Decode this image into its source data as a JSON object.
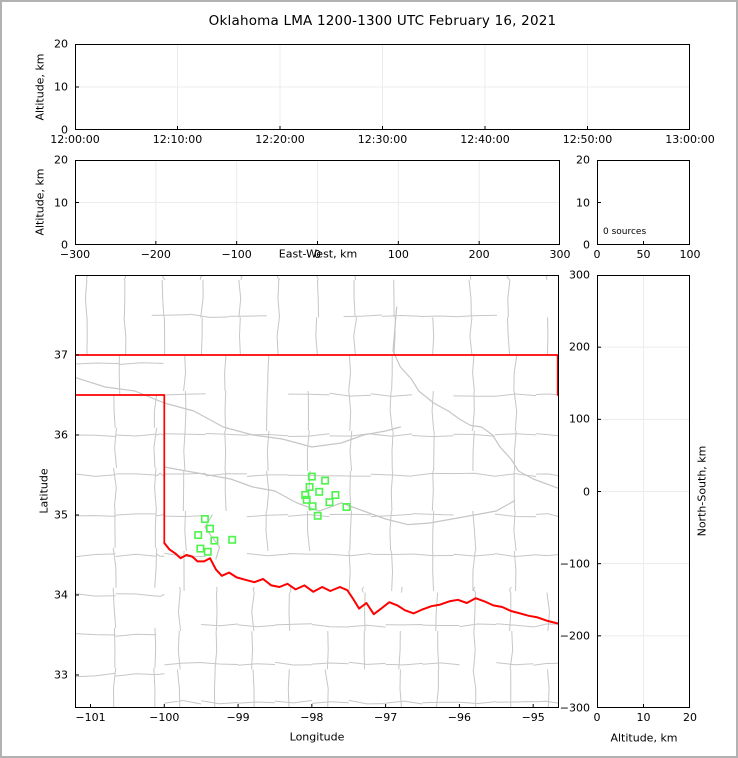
{
  "figure": {
    "title": "Oklahoma LMA 1200-1300 UTC February 16, 2021",
    "background": "#ffffff",
    "frame_color": "#b2b2b2"
  },
  "colors": {
    "axis": "#000000",
    "grid": "#ececec",
    "county": "#c6c6c6",
    "state_border": "#ff0000",
    "red_river": "#ff0000",
    "gray_river": "#c6c6c6",
    "station": "#4cf44c"
  },
  "chart_data": [
    {
      "id": "time_height",
      "type": "scatter",
      "xlabel": "",
      "ylabel": "Altitude, km",
      "xlim": [
        0,
        6
      ],
      "ylim": [
        0,
        20
      ],
      "xtick_vals": [
        0,
        1,
        2,
        3,
        4,
        5,
        6
      ],
      "xtick_labels": [
        "12:00:00",
        "12:10:00",
        "12:20:00",
        "12:30:00",
        "12:40:00",
        "12:50:00",
        "13:00:00"
      ],
      "ytick_vals": [
        0,
        10,
        20
      ],
      "ytick_labels": [
        "0",
        "10",
        "20"
      ],
      "grid": true,
      "points": []
    },
    {
      "id": "ew_height",
      "type": "scatter",
      "xlabel": "East-West, km",
      "ylabel": "Altitude, km",
      "xlim": [
        -300,
        300
      ],
      "ylim": [
        0,
        20
      ],
      "xtick_vals": [
        -300,
        -200,
        -100,
        0,
        100,
        200,
        300
      ],
      "xtick_labels": [
        "−300",
        "−200",
        "−100",
        "0",
        "100",
        "200",
        "300"
      ],
      "ytick_vals": [
        0,
        10,
        20
      ],
      "ytick_labels": [
        "0",
        "10",
        "20"
      ],
      "grid": true,
      "points": []
    },
    {
      "id": "altitude_histogram",
      "type": "line",
      "xlabel": "",
      "ylabel": "",
      "xlim": [
        0,
        100
      ],
      "ylim": [
        0,
        20
      ],
      "xtick_vals": [
        0,
        50,
        100
      ],
      "xtick_labels": [
        "0",
        "50",
        "100"
      ],
      "ytick_vals": [
        0,
        10,
        20
      ],
      "ytick_labels": [
        "0",
        "10",
        "20"
      ],
      "grid": false,
      "annotation": "0 sources",
      "points": []
    },
    {
      "id": "map",
      "type": "scatter",
      "xlabel": "Longitude",
      "ylabel": "Latitude",
      "xlim": [
        -101.21,
        -94.65
      ],
      "ylim": [
        32.5875,
        38.0
      ],
      "xtick_vals": [
        -101,
        -100,
        -99,
        -98,
        -97,
        -96,
        -95
      ],
      "xtick_labels": [
        "−101",
        "−100",
        "−99",
        "−98",
        "−97",
        "−96",
        "−95"
      ],
      "ytick_vals": [
        33,
        34,
        35,
        36,
        37
      ],
      "ytick_labels": [
        "33",
        "34",
        "35",
        "36",
        "37"
      ],
      "grid": false,
      "stations": [
        [
          -99.45,
          34.95
        ],
        [
          -99.38,
          34.83
        ],
        [
          -99.54,
          34.75
        ],
        [
          -99.32,
          34.68
        ],
        [
          -99.08,
          34.69
        ],
        [
          -99.51,
          34.58
        ],
        [
          -99.41,
          34.54
        ],
        [
          -98.0,
          35.48
        ],
        [
          -97.82,
          35.43
        ],
        [
          -98.03,
          35.35
        ],
        [
          -97.9,
          35.29
        ],
        [
          -98.09,
          35.25
        ],
        [
          -97.68,
          35.25
        ],
        [
          -98.07,
          35.19
        ],
        [
          -97.76,
          35.16
        ],
        [
          -97.99,
          35.11
        ],
        [
          -97.53,
          35.1
        ],
        [
          -97.92,
          34.99
        ]
      ],
      "state_border": [
        [
          [
            -101.21,
            37.0
          ],
          [
            -94.667,
            37.0
          ],
          [
            -94.667,
            36.5
          ]
        ],
        [
          [
            -101.21,
            36.5
          ],
          [
            -100.0,
            36.5
          ],
          [
            -100.0,
            34.65
          ]
        ]
      ],
      "red_river": [
        [
          -100.0,
          34.65
        ],
        [
          -99.93,
          34.57
        ],
        [
          -99.85,
          34.52
        ],
        [
          -99.78,
          34.46
        ],
        [
          -99.7,
          34.5
        ],
        [
          -99.62,
          34.48
        ],
        [
          -99.55,
          34.42
        ],
        [
          -99.46,
          34.42
        ],
        [
          -99.38,
          34.46
        ],
        [
          -99.3,
          34.32
        ],
        [
          -99.22,
          34.24
        ],
        [
          -99.12,
          34.28
        ],
        [
          -99.02,
          34.22
        ],
        [
          -98.9,
          34.19
        ],
        [
          -98.78,
          34.16
        ],
        [
          -98.66,
          34.2
        ],
        [
          -98.55,
          34.12
        ],
        [
          -98.44,
          34.1
        ],
        [
          -98.33,
          34.14
        ],
        [
          -98.22,
          34.07
        ],
        [
          -98.1,
          34.12
        ],
        [
          -97.98,
          34.04
        ],
        [
          -97.86,
          34.1
        ],
        [
          -97.75,
          34.05
        ],
        [
          -97.62,
          34.1
        ],
        [
          -97.52,
          34.06
        ],
        [
          -97.44,
          33.95
        ],
        [
          -97.36,
          33.83
        ],
        [
          -97.26,
          33.9
        ],
        [
          -97.16,
          33.76
        ],
        [
          -97.06,
          33.83
        ],
        [
          -96.95,
          33.91
        ],
        [
          -96.84,
          33.87
        ],
        [
          -96.74,
          33.81
        ],
        [
          -96.62,
          33.77
        ],
        [
          -96.5,
          33.82
        ],
        [
          -96.38,
          33.86
        ],
        [
          -96.26,
          33.88
        ],
        [
          -96.14,
          33.92
        ],
        [
          -96.02,
          33.94
        ],
        [
          -95.9,
          33.9
        ],
        [
          -95.78,
          33.96
        ],
        [
          -95.66,
          33.92
        ],
        [
          -95.54,
          33.87
        ],
        [
          -95.42,
          33.85
        ],
        [
          -95.3,
          33.8
        ],
        [
          -95.18,
          33.77
        ],
        [
          -95.06,
          33.74
        ],
        [
          -94.94,
          33.72
        ],
        [
          -94.82,
          33.68
        ],
        [
          -94.65,
          33.64
        ]
      ],
      "gray_rivers": [
        [
          [
            -96.85,
            37.6
          ],
          [
            -96.9,
            37.05
          ],
          [
            -96.8,
            36.85
          ],
          [
            -96.65,
            36.7
          ],
          [
            -96.55,
            36.55
          ],
          [
            -96.35,
            36.4
          ],
          [
            -96.15,
            36.3
          ],
          [
            -96.0,
            36.2
          ],
          [
            -95.85,
            36.12
          ],
          [
            -95.7,
            36.1
          ],
          [
            -95.55,
            36.0
          ],
          [
            -95.45,
            35.85
          ],
          [
            -95.3,
            35.7
          ],
          [
            -95.2,
            35.55
          ],
          [
            -95.0,
            35.45
          ],
          [
            -94.85,
            35.4
          ],
          [
            -94.65,
            35.33
          ]
        ],
        [
          [
            -100.0,
            35.6
          ],
          [
            -99.7,
            35.55
          ],
          [
            -99.4,
            35.5
          ],
          [
            -99.1,
            35.45
          ],
          [
            -98.8,
            35.35
          ],
          [
            -98.5,
            35.3
          ],
          [
            -98.2,
            35.15
          ],
          [
            -97.9,
            35.05
          ],
          [
            -97.6,
            35.15
          ],
          [
            -97.3,
            35.05
          ],
          [
            -97.0,
            34.95
          ],
          [
            -96.7,
            34.88
          ],
          [
            -96.4,
            34.9
          ],
          [
            -96.1,
            34.95
          ],
          [
            -95.8,
            35.0
          ],
          [
            -95.5,
            35.05
          ],
          [
            -95.25,
            35.18
          ]
        ],
        [
          [
            -101.21,
            36.72
          ],
          [
            -100.8,
            36.6
          ],
          [
            -100.4,
            36.55
          ],
          [
            -100.0,
            36.4
          ],
          [
            -99.6,
            36.3
          ],
          [
            -99.2,
            36.1
          ],
          [
            -98.8,
            36.0
          ],
          [
            -98.4,
            35.95
          ],
          [
            -98.0,
            35.85
          ],
          [
            -97.6,
            35.9
          ],
          [
            -97.3,
            36.0
          ],
          [
            -97.0,
            36.05
          ],
          [
            -96.8,
            36.1
          ]
        ],
        [
          [
            -99.35,
            35.0
          ],
          [
            -99.45,
            34.85
          ],
          [
            -99.35,
            34.72
          ],
          [
            -99.25,
            34.6
          ],
          [
            -99.3,
            34.45
          ]
        ]
      ],
      "county_regions": [
        {
          "lon0": -101.21,
          "lon1": -94.65,
          "lat0": 37.0,
          "lat1": 38.0,
          "dlon": 0.52,
          "dlat": 0.47,
          "vstart": -101.05,
          "hstart": 37.49,
          "seed": 11,
          "skip": 0.14
        },
        {
          "lon0": -100.0,
          "lon1": -94.65,
          "lat0": 34.05,
          "lat1": 37.0,
          "dlon": 0.56,
          "dlat": 0.5,
          "vstart": -99.72,
          "hstart": 34.5,
          "seed": 22,
          "skip": 0.16
        },
        {
          "lon0": -100.0,
          "lon1": -94.65,
          "lat0": 32.59,
          "lat1": 34.1,
          "dlon": 0.5,
          "dlat": 0.48,
          "vstart": -99.8,
          "hstart": 32.66,
          "seed": 33,
          "skip": 0.12
        },
        {
          "lon0": -101.21,
          "lon1": -100.0,
          "lat0": 32.59,
          "lat1": 36.5,
          "dlon": 0.55,
          "dlat": 0.5,
          "vstart": -100.67,
          "hstart": 33.0,
          "seed": 44,
          "skip": 0.08
        },
        {
          "lon0": -101.21,
          "lon1": -100.0,
          "lat0": 36.5,
          "lat1": 37.0,
          "dlon": 0.6,
          "dlat": 0.5,
          "vstart": -100.62,
          "hstart": 36.9,
          "seed": 55,
          "skip": 0.0
        }
      ]
    },
    {
      "id": "ns_height",
      "type": "scatter",
      "xlabel": "Altitude, km",
      "ylabel": "North-South, km",
      "xlim": [
        0,
        20
      ],
      "ylim": [
        -300,
        300
      ],
      "xtick_vals": [
        0,
        10,
        20
      ],
      "xtick_labels": [
        "0",
        "10",
        "20"
      ],
      "ytick_vals": [
        -300,
        -200,
        -100,
        0,
        100,
        200,
        300
      ],
      "ytick_labels": [
        "−300",
        "−200",
        "−100",
        "0",
        "100",
        "200",
        "300"
      ],
      "grid": true,
      "points": []
    }
  ]
}
